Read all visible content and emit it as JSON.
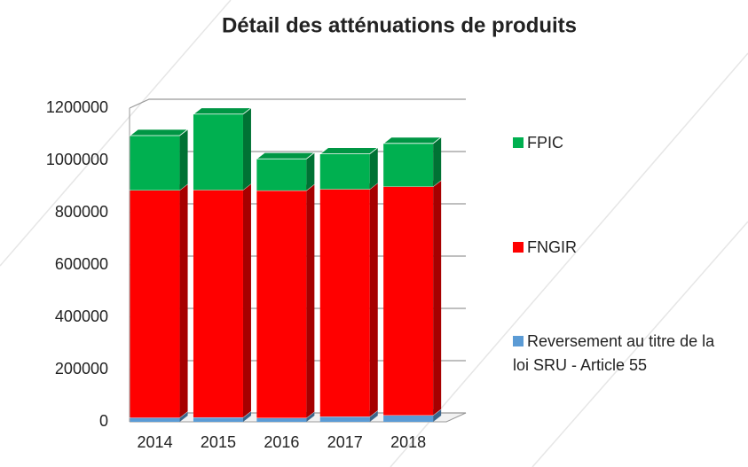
{
  "chart_data": {
    "type": "bar",
    "stacked": true,
    "title": "Détail des atténuations de produits",
    "categories": [
      "2014",
      "2015",
      "2016",
      "2017",
      "2018"
    ],
    "series": [
      {
        "name": "Reversement au titre de la loi SRU - Article 55",
        "color": "#5b9bd5",
        "values": [
          16000,
          17000,
          15000,
          20000,
          25000
        ]
      },
      {
        "name": "FNGIR",
        "color": "#ff0000",
        "values": [
          870000,
          870000,
          870000,
          870000,
          875000
        ]
      },
      {
        "name": "FPIC",
        "color": "#00b050",
        "values": [
          209000,
          290000,
          121000,
          135000,
          165000
        ]
      }
    ],
    "ylim": [
      0,
      1200000
    ],
    "yticks": [
      0,
      200000,
      400000,
      600000,
      800000,
      1000000,
      1200000
    ],
    "grid": true,
    "legend": "right"
  }
}
